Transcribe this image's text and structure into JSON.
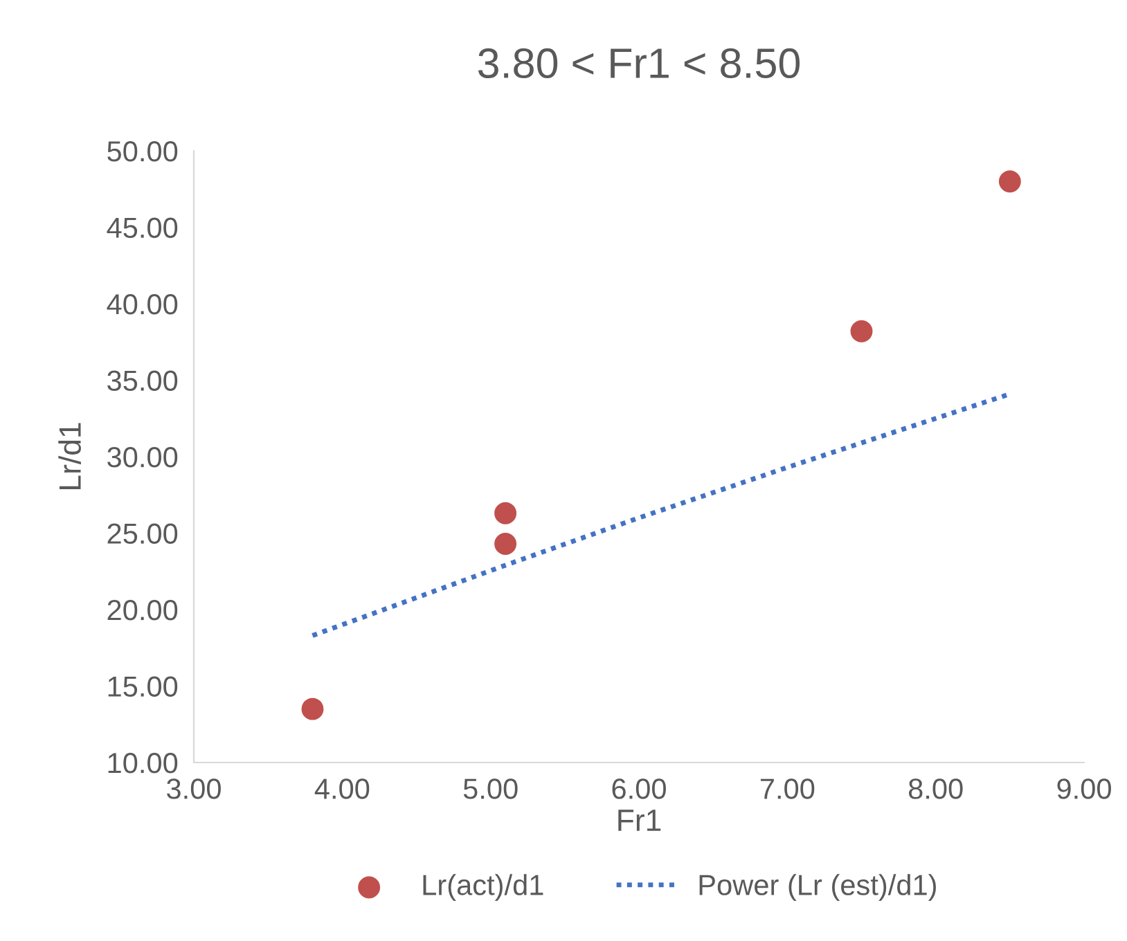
{
  "chart_data": {
    "type": "scatter",
    "title": "3.80 < Fr1 < 8.50",
    "xlabel": "Fr1",
    "ylabel": "Lr/d1",
    "series": [
      {
        "name": "Lr(act)/d1",
        "color": "#c0504d",
        "marker": "circle",
        "x": [
          3.8,
          5.1,
          5.1,
          7.5,
          8.5
        ],
        "values": [
          13.5,
          26.3,
          24.3,
          38.2,
          48.0
        ]
      },
      {
        "name": "Power (Lr (est)/d1)",
        "type": "line",
        "color": "#4472c4",
        "marker": "none",
        "line_style": "dotted",
        "x": [
          3.8,
          5.1,
          6.0,
          7.0,
          7.5,
          8.5
        ],
        "values": [
          18.3,
          22.9,
          26.0,
          29.3,
          30.9,
          34.1
        ]
      }
    ],
    "xlim": [
      3,
      9
    ],
    "ylim": [
      10,
      50
    ],
    "xticks": [
      {
        "value": 3,
        "label": "3.00"
      },
      {
        "value": 4,
        "label": "4.00"
      },
      {
        "value": 5,
        "label": "5.00"
      },
      {
        "value": 6,
        "label": "6.00"
      },
      {
        "value": 7,
        "label": "7.00"
      },
      {
        "value": 8,
        "label": "8.00"
      },
      {
        "value": 9,
        "label": "9.00"
      }
    ],
    "yticks": [
      {
        "value": 10,
        "label": "10.00"
      },
      {
        "value": 15,
        "label": "15.00"
      },
      {
        "value": 20,
        "label": "20.00"
      },
      {
        "value": 25,
        "label": "25.00"
      },
      {
        "value": 30,
        "label": "30.00"
      },
      {
        "value": 35,
        "label": "35.00"
      },
      {
        "value": 40,
        "label": "40.00"
      },
      {
        "value": 45,
        "label": "45.00"
      },
      {
        "value": 50,
        "label": "50.00"
      }
    ],
    "grid": false,
    "legend": "bottom"
  }
}
